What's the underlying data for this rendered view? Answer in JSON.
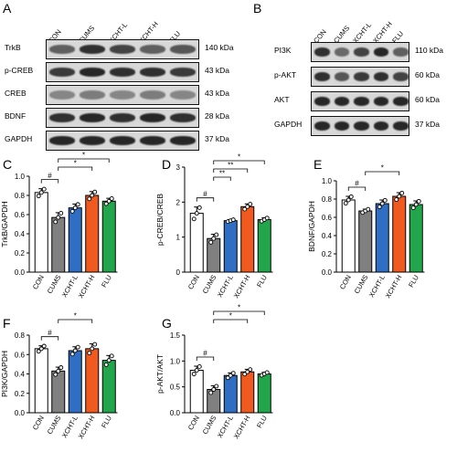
{
  "panel_letters": [
    "A",
    "B",
    "C",
    "D",
    "E",
    "F",
    "G"
  ],
  "lanes": [
    "CON",
    "CUMS",
    "XCHT-L",
    "XCHT-H",
    "FLU"
  ],
  "blot_A": [
    {
      "label": "TrkB",
      "kda": "140 kDa",
      "intensity": [
        0.55,
        0.8,
        0.7,
        0.55,
        0.6
      ]
    },
    {
      "label": "p-CREB",
      "kda": "43 kDa",
      "intensity": [
        0.75,
        0.85,
        0.8,
        0.8,
        0.75
      ]
    },
    {
      "label": "CREB",
      "kda": "43 kDa",
      "intensity": [
        0.35,
        0.4,
        0.35,
        0.4,
        0.35
      ]
    },
    {
      "label": "BDNF",
      "kda": "28 kDa",
      "intensity": [
        0.8,
        0.85,
        0.8,
        0.85,
        0.8
      ]
    },
    {
      "label": "GAPDH",
      "kda": "37 kDa",
      "intensity": [
        0.85,
        0.85,
        0.85,
        0.85,
        0.85
      ]
    }
  ],
  "blot_B": [
    {
      "label": "PI3K",
      "kda": "110 kDa",
      "intensity": [
        0.8,
        0.5,
        0.7,
        0.85,
        0.55
      ]
    },
    {
      "label": "p-AKT",
      "kda": "60 kDa",
      "intensity": [
        0.8,
        0.6,
        0.75,
        0.8,
        0.7
      ]
    },
    {
      "label": "AKT",
      "kda": "60 kDa",
      "intensity": [
        0.85,
        0.85,
        0.85,
        0.85,
        0.85
      ]
    },
    {
      "label": "GAPDH",
      "kda": "37 kDa",
      "intensity": [
        0.85,
        0.85,
        0.85,
        0.85,
        0.85
      ]
    }
  ],
  "colors": {
    "CON": "#ffffff",
    "CUMS": "#808080",
    "XCHT-L": "#2f6ec2",
    "XCHT-H": "#f05a1e",
    "FLU": "#22a64b"
  },
  "chart_data": [
    {
      "panel": "C",
      "type": "bar",
      "categories": [
        "CON",
        "CUMS",
        "XCHT-L",
        "XCHT-H",
        "FLU"
      ],
      "values": [
        0.83,
        0.57,
        0.67,
        0.8,
        0.74
      ],
      "errors": [
        0.04,
        0.05,
        0.04,
        0.04,
        0.03
      ],
      "ylabel": "TrkB/GAPDH",
      "ylim": [
        0,
        1.0
      ],
      "yticks": [
        "0.0",
        "0.2",
        "0.4",
        "0.6",
        "0.8",
        "1.0"
      ],
      "annotations": [
        {
          "from": 0,
          "to": 1,
          "text": "#"
        },
        {
          "from": 1,
          "to": 3,
          "text": "*"
        },
        {
          "from": 1,
          "to": 4,
          "text": "*"
        }
      ]
    },
    {
      "panel": "D",
      "type": "bar",
      "categories": [
        "CON",
        "CUMS",
        "XCHT-L",
        "XCHT-H",
        "FLU"
      ],
      "values": [
        1.68,
        0.96,
        1.47,
        1.87,
        1.5
      ],
      "errors": [
        0.18,
        0.12,
        0.03,
        0.08,
        0.05
      ],
      "ylabel": "p-CREB/CREB",
      "ylim": [
        0,
        3
      ],
      "yticks": [
        "0",
        "1",
        "2",
        "3"
      ],
      "annotations": [
        {
          "from": 0,
          "to": 1,
          "text": "#"
        },
        {
          "from": 1,
          "to": 2,
          "text": "**"
        },
        {
          "from": 1,
          "to": 3,
          "text": "**"
        },
        {
          "from": 1,
          "to": 4,
          "text": "*"
        }
      ]
    },
    {
      "panel": "E",
      "type": "bar",
      "categories": [
        "CON",
        "CUMS",
        "XCHT-L",
        "XCHT-H",
        "FLU"
      ],
      "values": [
        0.79,
        0.67,
        0.75,
        0.83,
        0.74
      ],
      "errors": [
        0.04,
        0.02,
        0.04,
        0.04,
        0.04
      ],
      "ylabel": "BDNF/GAPDH",
      "ylim": [
        0,
        1.0
      ],
      "yticks": [
        "0.0",
        "0.2",
        "0.4",
        "0.6",
        "0.8",
        "1.0"
      ],
      "annotations": [
        {
          "from": 0,
          "to": 1,
          "text": "#"
        },
        {
          "from": 1,
          "to": 3,
          "text": "*"
        }
      ]
    },
    {
      "panel": "F",
      "type": "bar",
      "categories": [
        "CON",
        "CUMS",
        "XCHT-L",
        "XCHT-H",
        "FLU"
      ],
      "values": [
        0.66,
        0.43,
        0.64,
        0.66,
        0.54
      ],
      "errors": [
        0.03,
        0.04,
        0.04,
        0.05,
        0.05
      ],
      "ylabel": "PI3K/GAPDH",
      "ylim": [
        0,
        0.8
      ],
      "yticks": [
        "0.0",
        "0.2",
        "0.4",
        "0.6",
        "0.8"
      ],
      "annotations": [
        {
          "from": 0,
          "to": 1,
          "text": "#"
        },
        {
          "from": 1,
          "to": 3,
          "text": "*"
        }
      ]
    },
    {
      "panel": "G",
      "type": "bar",
      "categories": [
        "CON",
        "CUMS",
        "XCHT-L",
        "XCHT-H",
        "FLU"
      ],
      "values": [
        0.82,
        0.45,
        0.72,
        0.79,
        0.75
      ],
      "errors": [
        0.08,
        0.07,
        0.05,
        0.05,
        0.03
      ],
      "ylabel": "p-AKT/AKT",
      "ylim": [
        0,
        1.5
      ],
      "yticks": [
        "0.0",
        "0.5",
        "1.0",
        "1.5"
      ],
      "annotations": [
        {
          "from": 0,
          "to": 1,
          "text": "#"
        },
        {
          "from": 1,
          "to": 3,
          "text": "*"
        },
        {
          "from": 1,
          "to": 4,
          "text": "*"
        }
      ]
    }
  ]
}
